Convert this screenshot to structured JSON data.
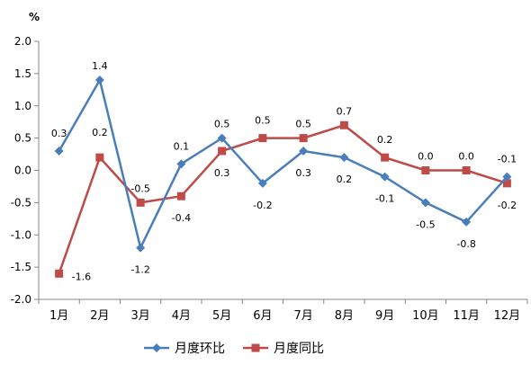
{
  "chart_data": {
    "type": "line",
    "y_unit_label": "%",
    "categories": [
      "1月",
      "2月",
      "3月",
      "4月",
      "5月",
      "6月",
      "7月",
      "8月",
      "9月",
      "10月",
      "11月",
      "12月"
    ],
    "ylim": [
      -2.0,
      2.0
    ],
    "y_ticks": [
      "2.0",
      "1.5",
      "1.0",
      "0.5",
      "0.0",
      "-0.5",
      "-1.0",
      "-1.5",
      "-2.0"
    ],
    "grid": false,
    "legend_position": "bottom",
    "series": [
      {
        "name": "月度环比",
        "color": "#4a7ebb",
        "marker": "diamond",
        "values": [
          0.3,
          1.4,
          -1.2,
          0.1,
          0.5,
          -0.2,
          0.3,
          0.2,
          -0.1,
          -0.5,
          -0.8,
          -0.1
        ],
        "labels": [
          "0.3",
          "1.4",
          "-1.2",
          "0.1",
          "0.5",
          "-0.2",
          "0.3",
          "0.2",
          "-0.1",
          "-0.5",
          "-0.8",
          "-0.1"
        ]
      },
      {
        "name": "月度同比",
        "color": "#be4b48",
        "marker": "square",
        "values": [
          -1.6,
          0.2,
          -0.5,
          -0.4,
          0.3,
          0.5,
          0.5,
          0.7,
          0.2,
          0.0,
          0.0,
          -0.2
        ],
        "labels": [
          "-1.6",
          "0.2",
          "-0.5",
          "-0.4",
          "0.3",
          "0.5",
          "0.5",
          "0.7",
          "0.2",
          "0.0",
          "0.0",
          "-0.2"
        ]
      }
    ]
  }
}
